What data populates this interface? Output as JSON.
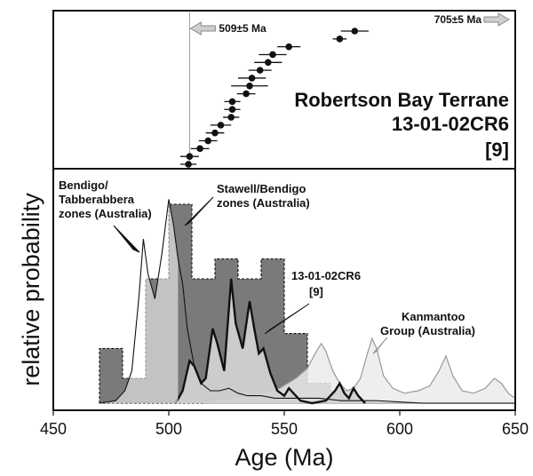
{
  "chart_data": {
    "type": "area",
    "ylabel": "relative probability",
    "xlabel": "Age (Ma)",
    "xlim": [
      450,
      650
    ],
    "x_ticks": [
      "450",
      "500",
      "550",
      "600",
      "650"
    ],
    "x_tick_values": [
      450,
      500,
      550,
      600,
      650
    ],
    "top_panel": {
      "title_lines": [
        "Robertson Bay Terrane",
        "13-01-02CR6",
        "[9]"
      ],
      "reference_line_age": 509,
      "left_arrow_label": "509±5 Ma",
      "right_arrow_label": "705±5 Ma",
      "ages": [
        {
          "age": 508.5,
          "err": 3.5
        },
        {
          "age": 509.0,
          "err": 4.0
        },
        {
          "age": 513.5,
          "err": 4.0
        },
        {
          "age": 517.0,
          "err": 4.0
        },
        {
          "age": 520.0,
          "err": 4.0
        },
        {
          "age": 522.5,
          "err": 4.5
        },
        {
          "age": 527.0,
          "err": 3.5
        },
        {
          "age": 527.5,
          "err": 3.5
        },
        {
          "age": 527.5,
          "err": 3.5
        },
        {
          "age": 533.5,
          "err": 4.0
        },
        {
          "age": 535.0,
          "err": 8.0
        },
        {
          "age": 536.0,
          "err": 6.0
        },
        {
          "age": 539.5,
          "err": 5.0
        },
        {
          "age": 543.0,
          "err": 6.0
        },
        {
          "age": 545.0,
          "err": 6.0
        },
        {
          "age": 552.0,
          "err": 5.0
        },
        {
          "age": 574.0,
          "err": 3.0
        },
        {
          "age": 580.5,
          "err": 6.0
        }
      ]
    },
    "series": [
      {
        "name": "Stawell/Bendigo zones (Australia)",
        "kind": "histogram",
        "color": "#7a7a7a",
        "bins": [
          [
            470,
            480,
            0.22
          ],
          [
            480,
            490,
            0.1
          ],
          [
            490,
            500,
            0.5
          ],
          [
            500,
            510,
            0.8
          ],
          [
            510,
            520,
            0.5
          ],
          [
            520,
            530,
            0.58
          ],
          [
            530,
            540,
            0.5
          ],
          [
            540,
            550,
            0.58
          ],
          [
            550,
            560,
            0.28
          ],
          [
            560,
            570,
            0.08
          ],
          [
            570,
            580,
            0.05
          ]
        ]
      },
      {
        "name": "Bendigo/Tabberabbera zones (Australia)",
        "kind": "line",
        "color": "#111111",
        "points": [
          [
            470,
            0
          ],
          [
            477,
            0.01
          ],
          [
            481,
            0.05
          ],
          [
            484,
            0.13
          ],
          [
            487,
            0.42
          ],
          [
            489,
            0.66
          ],
          [
            491,
            0.52
          ],
          [
            494,
            0.42
          ],
          [
            497,
            0.6
          ],
          [
            500,
            0.82
          ],
          [
            502,
            0.72
          ],
          [
            504,
            0.58
          ],
          [
            506,
            0.48
          ],
          [
            508,
            0.3
          ],
          [
            511,
            0.15
          ],
          [
            514,
            0.08
          ],
          [
            518,
            0.05
          ],
          [
            522,
            0.05
          ],
          [
            526,
            0.06
          ],
          [
            530,
            0.04
          ],
          [
            534,
            0.03
          ],
          [
            540,
            0.03
          ],
          [
            546,
            0.02
          ],
          [
            555,
            0.02
          ],
          [
            565,
            0.02
          ],
          [
            575,
            0.01
          ],
          [
            590,
            0.01
          ],
          [
            610,
            0
          ],
          [
            650,
            0
          ]
        ]
      },
      {
        "name": "Kanmantoo Group (Australia)",
        "kind": "area",
        "color": "#ebebeb",
        "points": [
          [
            515,
            0
          ],
          [
            522,
            0.01
          ],
          [
            528,
            0.02
          ],
          [
            534,
            0.03
          ],
          [
            540,
            0.04
          ],
          [
            548,
            0.06
          ],
          [
            555,
            0.1
          ],
          [
            560,
            0.14
          ],
          [
            564,
            0.21
          ],
          [
            566,
            0.24
          ],
          [
            568,
            0.21
          ],
          [
            571,
            0.13
          ],
          [
            574,
            0.08
          ],
          [
            577,
            0.05
          ],
          [
            580,
            0.06
          ],
          [
            583,
            0.1
          ],
          [
            586,
            0.2
          ],
          [
            588,
            0.26
          ],
          [
            590,
            0.22
          ],
          [
            593,
            0.11
          ],
          [
            597,
            0.06
          ],
          [
            602,
            0.04
          ],
          [
            608,
            0.05
          ],
          [
            613,
            0.07
          ],
          [
            617,
            0.13
          ],
          [
            620,
            0.19
          ],
          [
            623,
            0.11
          ],
          [
            627,
            0.05
          ],
          [
            632,
            0.04
          ],
          [
            637,
            0.06
          ],
          [
            641,
            0.1
          ],
          [
            644,
            0.08
          ],
          [
            647,
            0.04
          ],
          [
            650,
            0.02
          ]
        ]
      },
      {
        "name": "13-01-02CR6 [9]",
        "kind": "area",
        "color": "#d2d2d2",
        "points": [
          [
            503,
            0
          ],
          [
            506,
            0.05
          ],
          [
            509,
            0.17
          ],
          [
            511,
            0.15
          ],
          [
            514,
            0.08
          ],
          [
            516,
            0.1
          ],
          [
            519,
            0.3
          ],
          [
            521,
            0.24
          ],
          [
            524,
            0.13
          ],
          [
            527,
            0.5
          ],
          [
            529,
            0.32
          ],
          [
            532,
            0.22
          ],
          [
            535,
            0.41
          ],
          [
            537,
            0.3
          ],
          [
            539,
            0.2
          ],
          [
            541,
            0.22
          ],
          [
            544,
            0.12
          ],
          [
            547,
            0.05
          ],
          [
            550,
            0.03
          ],
          [
            552,
            0.06
          ],
          [
            554,
            0.04
          ],
          [
            557,
            0.01
          ],
          [
            562,
            0
          ],
          [
            568,
            0.01
          ],
          [
            572,
            0.05
          ],
          [
            574,
            0.08
          ],
          [
            576,
            0.04
          ],
          [
            578,
            0.02
          ],
          [
            580,
            0.06
          ],
          [
            582,
            0.03
          ],
          [
            585,
            0
          ]
        ]
      }
    ]
  }
}
